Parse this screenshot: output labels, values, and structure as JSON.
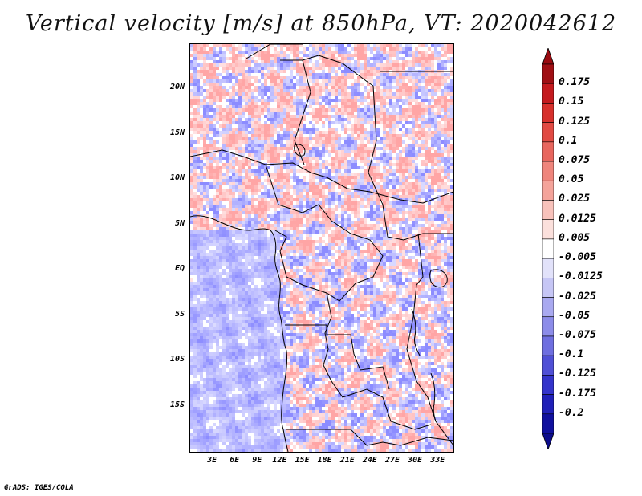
{
  "title": "Vertical velocity [m/s] at 850hPa, VT: 2020042612",
  "credit": "GrADS: IGES/COLA",
  "map": {
    "lat_range": [
      -20,
      25
    ],
    "lon_range": [
      0,
      35
    ],
    "lat_labels": [
      "20N",
      "15N",
      "10N",
      "5N",
      "EQ",
      "5S",
      "10S",
      "15S"
    ],
    "lat_values": [
      20,
      15,
      10,
      5,
      0,
      -5,
      -10,
      -15
    ],
    "lon_labels": [
      "3E",
      "6E",
      "9E",
      "12E",
      "15E",
      "18E",
      "21E",
      "24E",
      "27E",
      "30E",
      "33E"
    ],
    "lon_values": [
      3,
      6,
      9,
      12,
      15,
      18,
      21,
      24,
      27,
      30,
      33
    ]
  },
  "colorbar": {
    "labels": [
      "0.175",
      "0.15",
      "0.125",
      "0.1",
      "0.075",
      "0.05",
      "0.025",
      "0.0125",
      "0.005",
      "-0.005",
      "-0.0125",
      "-0.025",
      "-0.05",
      "-0.075",
      "-0.1",
      "-0.125",
      "-0.175",
      "-0.2"
    ],
    "colors": [
      "#a00f14",
      "#c41a1e",
      "#d7302c",
      "#e14a43",
      "#e8665e",
      "#ef857c",
      "#f4a39a",
      "#f8c2bb",
      "#fbe0dc",
      "#ffffff",
      "#e2e2fa",
      "#c6c6f5",
      "#a9a9f0",
      "#8c8ce9",
      "#6f6fe0",
      "#5050d6",
      "#3434cb",
      "#2020b8",
      "#10109e"
    ],
    "max_color": "#9a0a10",
    "min_color": "#0c0c8c"
  },
  "colors": {
    "positive": "#d9363b",
    "negative": "#4040d8",
    "coastline": "#000000"
  }
}
